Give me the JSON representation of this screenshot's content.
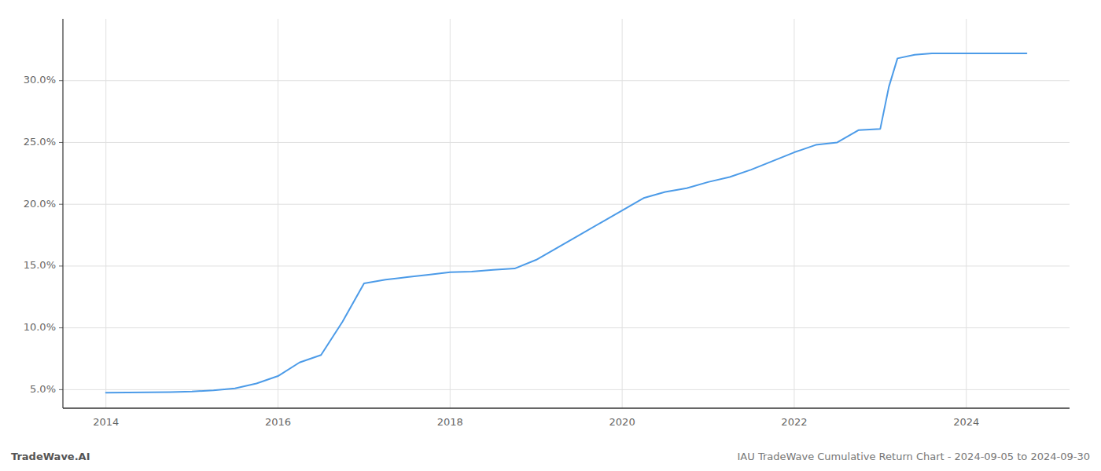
{
  "chart_data": {
    "type": "line",
    "annotations": [
      "TradeWave.AI",
      "IAU TradeWave Cumulative Return Chart - 2024-09-05 to 2024-09-30"
    ],
    "x": [
      2014.0,
      2014.5,
      2014.75,
      2015.0,
      2015.25,
      2015.5,
      2015.75,
      2016.0,
      2016.25,
      2016.5,
      2016.75,
      2017.0,
      2017.25,
      2017.5,
      2017.75,
      2018.0,
      2018.25,
      2018.5,
      2018.75,
      2019.0,
      2019.25,
      2019.5,
      2019.75,
      2020.0,
      2020.25,
      2020.5,
      2020.75,
      2021.0,
      2021.25,
      2021.5,
      2021.75,
      2022.0,
      2022.25,
      2022.5,
      2022.75,
      2023.0,
      2023.1,
      2023.2,
      2023.4,
      2023.6,
      2023.8,
      2024.0,
      2024.3,
      2024.7
    ],
    "values": [
      4.75,
      4.78,
      4.8,
      4.85,
      4.95,
      5.1,
      5.5,
      6.1,
      7.2,
      7.8,
      10.5,
      13.6,
      13.9,
      14.1,
      14.3,
      14.5,
      14.55,
      14.7,
      14.8,
      15.5,
      16.5,
      17.5,
      18.5,
      19.5,
      20.5,
      21.0,
      21.3,
      21.8,
      22.2,
      22.8,
      23.5,
      24.2,
      24.8,
      25.0,
      26.0,
      26.1,
      29.5,
      31.8,
      32.1,
      32.2,
      32.2,
      32.2,
      32.2,
      32.2
    ],
    "color": "#4c9be8",
    "xlim": [
      2013.5,
      2025.2
    ],
    "ylim": [
      3.5,
      35.0
    ],
    "xticks": [
      2014,
      2016,
      2018,
      2020,
      2022,
      2024
    ],
    "yticks": [
      {
        "value": 5.0,
        "label": "5.0%"
      },
      {
        "value": 10.0,
        "label": "10.0%"
      },
      {
        "value": 15.0,
        "label": "15.0%"
      },
      {
        "value": 20.0,
        "label": "20.0%"
      },
      {
        "value": 25.0,
        "label": "25.0%"
      },
      {
        "value": 30.0,
        "label": "30.0%"
      }
    ],
    "grid": true
  }
}
